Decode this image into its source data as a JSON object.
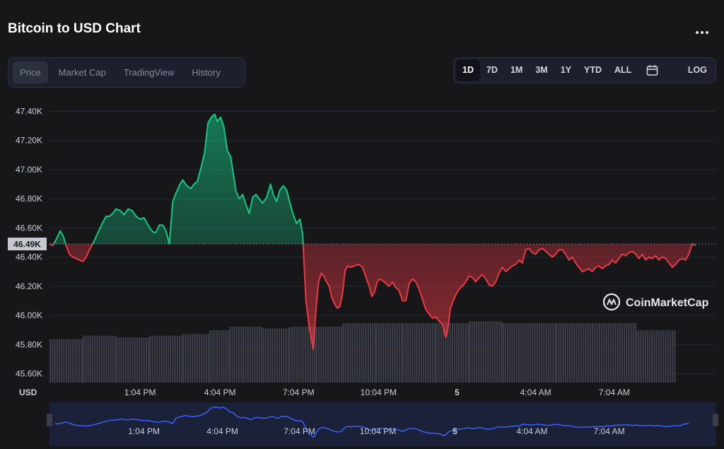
{
  "header": {
    "title": "Bitcoin to USD Chart",
    "more_icon": "more-horizontal-icon"
  },
  "tabs": [
    "Price",
    "Market Cap",
    "TradingView",
    "History"
  ],
  "active_tab": "Price",
  "ranges": {
    "items": [
      "1D",
      "7D",
      "1M",
      "3M",
      "1Y",
      "YTD",
      "ALL"
    ],
    "active": "1D",
    "calendar_icon": "calendar-icon",
    "log_label": "LOG"
  },
  "colors": {
    "up": "#16c784",
    "down": "#ea3943",
    "volume": "#3b3d48",
    "navigator_line": "#3861fb",
    "background": "#17171a"
  },
  "watermark": "CoinMarketCap",
  "chart_data": {
    "type": "area",
    "currency_label": "USD",
    "baseline": 46490,
    "current_price_label": "46.49K",
    "ylim": [
      45520,
      47480
    ],
    "yticks": [
      "47.40K",
      "47.20K",
      "47.00K",
      "46.80K",
      "46.60K",
      "46.40K",
      "46.20K",
      "46.00K",
      "45.80K",
      "45.60K"
    ],
    "ytick_values": [
      47400,
      47200,
      47000,
      46800,
      46600,
      46400,
      46200,
      46000,
      45800,
      45600
    ],
    "xlim": [
      0,
      1000
    ],
    "xtick_values": [
      136,
      256,
      374,
      494,
      612,
      730,
      848
    ],
    "xticks": [
      "1:04 PM",
      "4:04 PM",
      "7:04 PM",
      "10:04 PM",
      "5",
      "4:04 AM",
      "7:04 AM"
    ],
    "price": [
      [
        0,
        46490
      ],
      [
        5,
        46480
      ],
      [
        10,
        46520
      ],
      [
        16,
        46580
      ],
      [
        21,
        46540
      ],
      [
        25,
        46480
      ],
      [
        30,
        46420
      ],
      [
        35,
        46400
      ],
      [
        40,
        46390
      ],
      [
        45,
        46380
      ],
      [
        50,
        46370
      ],
      [
        55,
        46400
      ],
      [
        60,
        46450
      ],
      [
        66,
        46500
      ],
      [
        72,
        46560
      ],
      [
        78,
        46620
      ],
      [
        85,
        46680
      ],
      [
        90,
        46680
      ],
      [
        95,
        46700
      ],
      [
        100,
        46730
      ],
      [
        106,
        46720
      ],
      [
        112,
        46690
      ],
      [
        118,
        46730
      ],
      [
        124,
        46720
      ],
      [
        130,
        46680
      ],
      [
        136,
        46660
      ],
      [
        142,
        46670
      ],
      [
        148,
        46620
      ],
      [
        152,
        46590
      ],
      [
        156,
        46570
      ],
      [
        160,
        46570
      ],
      [
        165,
        46620
      ],
      [
        170,
        46620
      ],
      [
        175,
        46580
      ],
      [
        180,
        46490
      ],
      [
        185,
        46780
      ],
      [
        190,
        46840
      ],
      [
        196,
        46900
      ],
      [
        200,
        46930
      ],
      [
        206,
        46890
      ],
      [
        212,
        46870
      ],
      [
        217,
        46900
      ],
      [
        222,
        46920
      ],
      [
        228,
        47020
      ],
      [
        233,
        47120
      ],
      [
        238,
        47320
      ],
      [
        243,
        47360
      ],
      [
        248,
        47380
      ],
      [
        252,
        47330
      ],
      [
        257,
        47360
      ],
      [
        262,
        47290
      ],
      [
        267,
        47130
      ],
      [
        272,
        47090
      ],
      [
        276,
        46970
      ],
      [
        280,
        46850
      ],
      [
        285,
        46800
      ],
      [
        290,
        46830
      ],
      [
        295,
        46760
      ],
      [
        300,
        46700
      ],
      [
        305,
        46810
      ],
      [
        310,
        46830
      ],
      [
        315,
        46800
      ],
      [
        320,
        46770
      ],
      [
        326,
        46810
      ],
      [
        332,
        46900
      ],
      [
        336,
        46830
      ],
      [
        341,
        46780
      ],
      [
        346,
        46860
      ],
      [
        351,
        46890
      ],
      [
        356,
        46860
      ],
      [
        361,
        46770
      ],
      [
        366,
        46690
      ],
      [
        371,
        46630
      ],
      [
        376,
        46660
      ],
      [
        380,
        46560
      ],
      [
        385,
        46100
      ],
      [
        390,
        45920
      ],
      [
        396,
        45770
      ],
      [
        400,
        46030
      ],
      [
        404,
        46230
      ],
      [
        408,
        46290
      ],
      [
        412,
        46270
      ],
      [
        416,
        46230
      ],
      [
        420,
        46200
      ],
      [
        424,
        46120
      ],
      [
        428,
        46080
      ],
      [
        432,
        46050
      ],
      [
        436,
        46060
      ],
      [
        440,
        46150
      ],
      [
        444,
        46310
      ],
      [
        448,
        46340
      ],
      [
        452,
        46330
      ],
      [
        458,
        46340
      ],
      [
        464,
        46350
      ],
      [
        470,
        46330
      ],
      [
        476,
        46250
      ],
      [
        480,
        46200
      ],
      [
        484,
        46130
      ],
      [
        488,
        46160
      ],
      [
        492,
        46230
      ],
      [
        496,
        46250
      ],
      [
        500,
        46240
      ],
      [
        505,
        46220
      ],
      [
        510,
        46200
      ],
      [
        515,
        46230
      ],
      [
        520,
        46190
      ],
      [
        525,
        46170
      ],
      [
        530,
        46100
      ],
      [
        535,
        46100
      ],
      [
        540,
        46220
      ],
      [
        545,
        46250
      ],
      [
        550,
        46230
      ],
      [
        555,
        46180
      ],
      [
        560,
        46110
      ],
      [
        565,
        46040
      ],
      [
        570,
        46010
      ],
      [
        575,
        45980
      ],
      [
        580,
        45990
      ],
      [
        585,
        45960
      ],
      [
        590,
        45940
      ],
      [
        595,
        45850
      ],
      [
        598,
        45900
      ],
      [
        602,
        46050
      ],
      [
        606,
        46100
      ],
      [
        610,
        46140
      ],
      [
        615,
        46180
      ],
      [
        620,
        46200
      ],
      [
        625,
        46230
      ],
      [
        630,
        46270
      ],
      [
        635,
        46260
      ],
      [
        640,
        46230
      ],
      [
        645,
        46260
      ],
      [
        650,
        46280
      ],
      [
        655,
        46250
      ],
      [
        660,
        46210
      ],
      [
        665,
        46200
      ],
      [
        670,
        46230
      ],
      [
        675,
        46290
      ],
      [
        680,
        46330
      ],
      [
        685,
        46300
      ],
      [
        690,
        46320
      ],
      [
        695,
        46340
      ],
      [
        700,
        46350
      ],
      [
        705,
        46380
      ],
      [
        710,
        46360
      ],
      [
        715,
        46450
      ],
      [
        720,
        46460
      ],
      [
        725,
        46430
      ],
      [
        730,
        46420
      ],
      [
        735,
        46450
      ],
      [
        740,
        46460
      ],
      [
        745,
        46440
      ],
      [
        750,
        46420
      ],
      [
        755,
        46400
      ],
      [
        760,
        46420
      ],
      [
        765,
        46450
      ],
      [
        770,
        46450
      ],
      [
        775,
        46420
      ],
      [
        780,
        46380
      ],
      [
        785,
        46400
      ],
      [
        790,
        46360
      ],
      [
        795,
        46330
      ],
      [
        800,
        46300
      ],
      [
        805,
        46310
      ],
      [
        810,
        46320
      ],
      [
        815,
        46300
      ],
      [
        820,
        46330
      ],
      [
        825,
        46340
      ],
      [
        830,
        46320
      ],
      [
        835,
        46340
      ],
      [
        840,
        46350
      ],
      [
        845,
        46380
      ],
      [
        850,
        46360
      ],
      [
        855,
        46390
      ],
      [
        860,
        46420
      ],
      [
        865,
        46410
      ],
      [
        870,
        46430
      ],
      [
        875,
        46440
      ],
      [
        880,
        46420
      ],
      [
        885,
        46390
      ],
      [
        890,
        46420
      ],
      [
        895,
        46380
      ],
      [
        900,
        46400
      ],
      [
        905,
        46390
      ],
      [
        910,
        46410
      ],
      [
        915,
        46380
      ],
      [
        920,
        46400
      ],
      [
        925,
        46390
      ],
      [
        930,
        46360
      ],
      [
        935,
        46330
      ],
      [
        940,
        46350
      ],
      [
        945,
        46380
      ],
      [
        950,
        46390
      ],
      [
        955,
        46380
      ],
      [
        960,
        46420
      ],
      [
        965,
        46490
      ],
      [
        970,
        46480
      ]
    ],
    "volume_level": [
      0.24,
      0.26,
      0.25,
      0.26,
      0.27,
      0.29,
      0.31,
      0.31,
      0.3,
      0.31,
      0.31,
      0.33,
      0.33,
      0.33,
      0.33,
      0.34,
      0.33,
      0.33,
      0.29
    ],
    "volume_breaks": [
      0,
      50,
      100,
      150,
      200,
      240,
      270,
      290,
      320,
      360,
      400,
      440,
      490,
      530,
      580,
      630,
      680,
      760,
      880,
      940
    ]
  }
}
